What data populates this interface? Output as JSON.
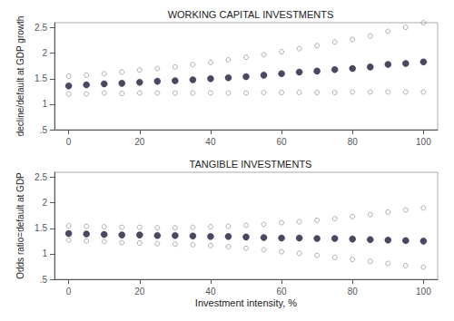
{
  "chart_data": [
    {
      "type": "scatter",
      "title": "WORKING CAPITAL INVESTMENTS",
      "ylabel": "decline/default at GDP growth",
      "x": [
        0,
        5,
        10,
        15,
        20,
        25,
        30,
        35,
        40,
        45,
        50,
        55,
        60,
        65,
        70,
        75,
        80,
        85,
        90,
        95,
        100
      ],
      "series": [
        {
          "color": "#999999",
          "marker": "open_circle",
          "values": [
            1.55,
            1.57,
            1.6,
            1.63,
            1.67,
            1.7,
            1.73,
            1.78,
            1.82,
            1.87,
            1.92,
            1.97,
            2.03,
            2.09,
            2.15,
            2.22,
            2.27,
            2.34,
            2.43,
            2.51,
            2.6
          ]
        },
        {
          "color": "#999999",
          "marker": "open_circle",
          "values": [
            1.2,
            1.2,
            1.22,
            1.21,
            1.22,
            1.22,
            1.22,
            1.22,
            1.22,
            1.22,
            1.22,
            1.23,
            1.23,
            1.23,
            1.23,
            1.23,
            1.24,
            1.24,
            1.24,
            1.24,
            1.24
          ]
        },
        {
          "color": "#1c1c3a",
          "marker": "circle",
          "values": [
            1.36,
            1.38,
            1.4,
            1.41,
            1.43,
            1.45,
            1.46,
            1.48,
            1.5,
            1.52,
            1.54,
            1.57,
            1.6,
            1.63,
            1.65,
            1.68,
            1.7,
            1.73,
            1.78,
            1.8,
            1.83
          ]
        }
      ],
      "xlim": [
        -4,
        104
      ],
      "xticks": [
        0,
        20,
        40,
        60,
        80,
        100
      ],
      "ylim": [
        0.5,
        2.6
      ],
      "yticks": [
        {
          "value": 0.5,
          "label": ".5"
        },
        1,
        1.5,
        2,
        2.5
      ],
      "grid": false
    },
    {
      "type": "scatter",
      "title": "TANGIBLE INVESTMENTS",
      "xlabel": "Investment intensity, %",
      "ylabel": "Odds ratio=default at GDP",
      "x": [
        0,
        5,
        10,
        15,
        20,
        25,
        30,
        35,
        40,
        45,
        50,
        55,
        60,
        65,
        70,
        75,
        80,
        85,
        90,
        95,
        100
      ],
      "series": [
        {
          "color": "#999999",
          "marker": "open_circle",
          "values": [
            1.55,
            1.54,
            1.53,
            1.52,
            1.52,
            1.51,
            1.51,
            1.52,
            1.53,
            1.54,
            1.56,
            1.58,
            1.61,
            1.63,
            1.66,
            1.69,
            1.73,
            1.77,
            1.82,
            1.86,
            1.9
          ]
        },
        {
          "color": "#999999",
          "marker": "open_circle",
          "values": [
            1.27,
            1.25,
            1.24,
            1.22,
            1.21,
            1.2,
            1.19,
            1.18,
            1.16,
            1.14,
            1.11,
            1.08,
            1.04,
            1.01,
            0.97,
            0.93,
            0.89,
            0.85,
            0.81,
            0.77,
            0.74
          ]
        },
        {
          "color": "#1c1c3a",
          "marker": "circle",
          "values": [
            1.4,
            1.39,
            1.38,
            1.37,
            1.37,
            1.36,
            1.36,
            1.35,
            1.34,
            1.34,
            1.33,
            1.32,
            1.31,
            1.31,
            1.3,
            1.3,
            1.29,
            1.28,
            1.27,
            1.26,
            1.25
          ]
        }
      ],
      "xlim": [
        -4,
        104
      ],
      "xticks": [
        0,
        20,
        40,
        60,
        80,
        100
      ],
      "ylim": [
        0.5,
        2.6
      ],
      "yticks": [
        {
          "value": 0.5,
          "label": ".5"
        },
        1,
        1.5,
        2,
        2.5
      ],
      "grid": false
    }
  ]
}
